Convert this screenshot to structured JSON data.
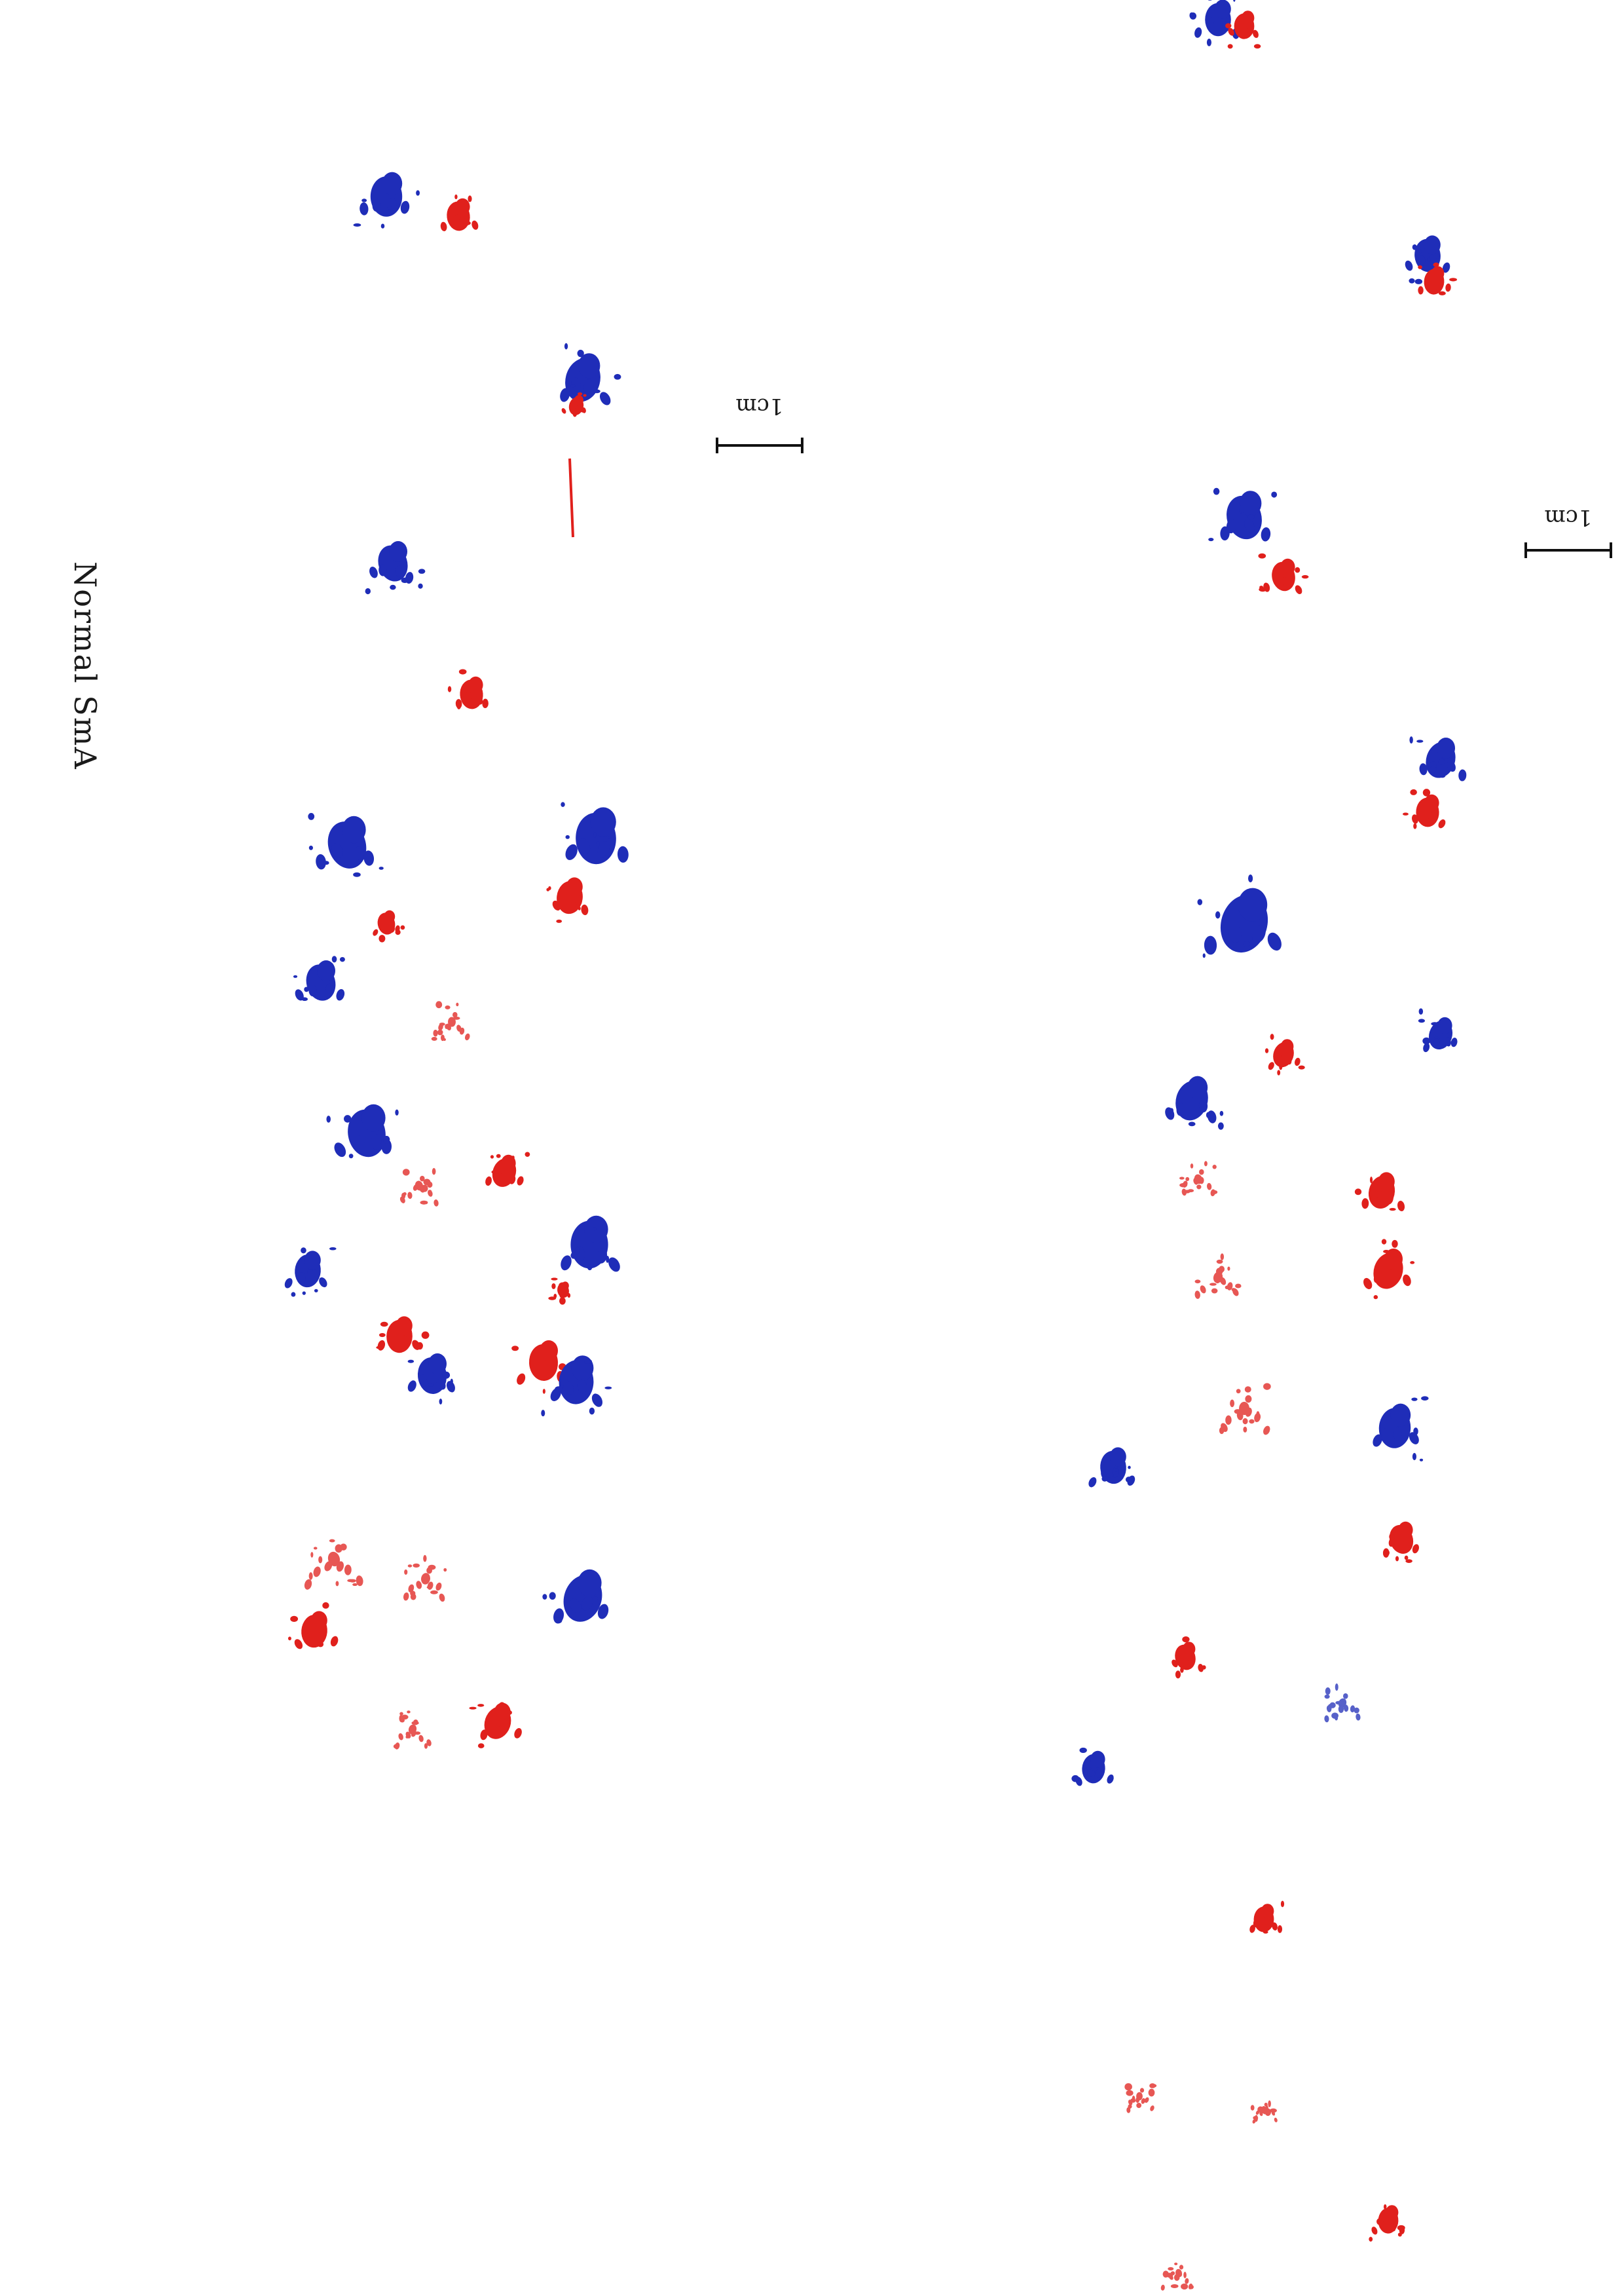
{
  "sheet": {
    "label": "Normal SmA",
    "scale_bars": [
      {
        "label": "1cm"
      },
      {
        "label": "1cm"
      }
    ],
    "ink_colors": {
      "forepaw": "#1f2db8",
      "hindpaw": "#e0201c"
    },
    "trails": 2
  }
}
